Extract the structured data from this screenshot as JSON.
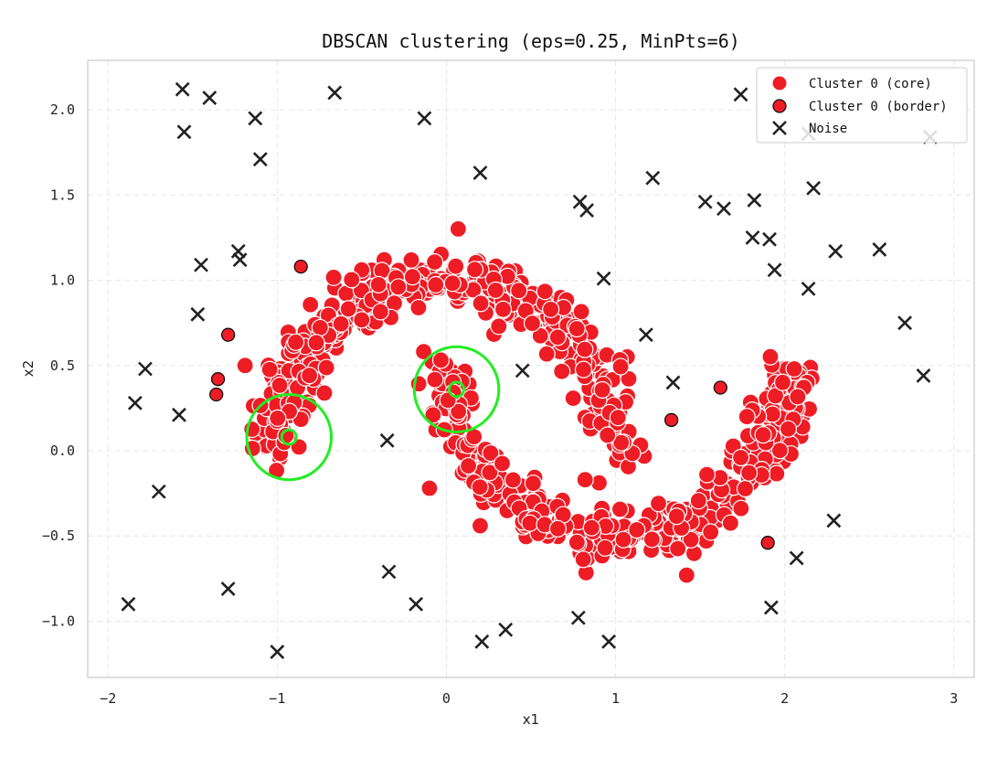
{
  "chart_data": {
    "type": "scatter",
    "title": "DBSCAN clustering (eps=0.25, MinPts=6)",
    "xlabel": "x1",
    "ylabel": "x2",
    "xlim": [
      -2.12,
      3.12
    ],
    "ylim": [
      -1.33,
      2.29
    ],
    "xticks": [
      -2,
      -1,
      0,
      1,
      2,
      3
    ],
    "yticks": [
      -1.0,
      -0.5,
      0.0,
      0.5,
      1.0,
      1.5,
      2.0
    ],
    "xtick_labels": [
      "−2",
      "−1",
      "0",
      "1",
      "2",
      "3"
    ],
    "ytick_labels": [
      "−1.0",
      "−0.5",
      "0.0",
      "0.5",
      "1.0",
      "1.5",
      "2.0"
    ],
    "grid": true,
    "legend_position": "top-right",
    "colors": {
      "core": "#ee1c25",
      "border": "#ee1c25",
      "noise": "#222222",
      "eps_circle": "#22ee22"
    },
    "series": [
      {
        "name": "Cluster 0 (core)",
        "marker": "circle",
        "kind": "moons",
        "upper_moon_points": 380,
        "lower_moon_points": 380,
        "extra_points": [
          [
            -1.19,
            0.5
          ],
          [
            0.31,
            0.73
          ],
          [
            -0.1,
            -0.22
          ],
          [
            0.2,
            -0.44
          ],
          [
            1.42,
            -0.73
          ],
          [
            1.54,
            -0.14
          ],
          [
            0.82,
            -0.17
          ]
        ]
      },
      {
        "name": "Cluster 0 (border)",
        "marker": "circle-edged",
        "points": [
          [
            -0.86,
            1.08
          ],
          [
            -1.29,
            0.68
          ],
          [
            -1.35,
            0.42
          ],
          [
            -1.36,
            0.33
          ],
          [
            1.33,
            0.18
          ],
          [
            1.62,
            0.37
          ],
          [
            1.9,
            -0.54
          ]
        ]
      },
      {
        "name": "Noise",
        "marker": "x",
        "points": [
          [
            -1.56,
            2.12
          ],
          [
            -1.4,
            2.07
          ],
          [
            -0.66,
            2.1
          ],
          [
            -1.55,
            1.87
          ],
          [
            -1.13,
            1.95
          ],
          [
            -0.13,
            1.95
          ],
          [
            -1.1,
            1.71
          ],
          [
            0.2,
            1.63
          ],
          [
            1.74,
            2.09
          ],
          [
            2.14,
            1.86
          ],
          [
            2.86,
            1.84
          ],
          [
            1.22,
            1.6
          ],
          [
            2.17,
            1.54
          ],
          [
            0.79,
            1.46
          ],
          [
            0.83,
            1.41
          ],
          [
            1.53,
            1.46
          ],
          [
            1.64,
            1.42
          ],
          [
            1.82,
            1.47
          ],
          [
            1.81,
            1.25
          ],
          [
            1.91,
            1.24
          ],
          [
            2.3,
            1.17
          ],
          [
            2.56,
            1.18
          ],
          [
            1.94,
            1.06
          ],
          [
            2.14,
            0.95
          ],
          [
            -1.23,
            1.17
          ],
          [
            -1.22,
            1.12
          ],
          [
            -1.45,
            1.09
          ],
          [
            0.93,
            1.01
          ],
          [
            -1.47,
            0.8
          ],
          [
            2.71,
            0.75
          ],
          [
            1.18,
            0.68
          ],
          [
            -1.78,
            0.48
          ],
          [
            0.45,
            0.47
          ],
          [
            1.34,
            0.4
          ],
          [
            2.82,
            0.44
          ],
          [
            -1.84,
            0.28
          ],
          [
            -1.58,
            0.21
          ],
          [
            -0.35,
            0.06
          ],
          [
            -1.7,
            -0.24
          ],
          [
            2.29,
            -0.41
          ],
          [
            2.07,
            -0.63
          ],
          [
            -0.34,
            -0.71
          ],
          [
            -1.29,
            -0.81
          ],
          [
            -1.88,
            -0.9
          ],
          [
            -0.18,
            -0.9
          ],
          [
            1.92,
            -0.92
          ],
          [
            0.78,
            -0.98
          ],
          [
            0.35,
            -1.05
          ],
          [
            0.21,
            -1.12
          ],
          [
            0.96,
            -1.12
          ],
          [
            -1.0,
            -1.18
          ]
        ]
      }
    ],
    "eps_circles": [
      {
        "center": [
          -0.93,
          0.08
        ],
        "radius": 0.25
      },
      {
        "center": [
          0.06,
          0.36
        ],
        "radius": 0.25
      }
    ]
  }
}
